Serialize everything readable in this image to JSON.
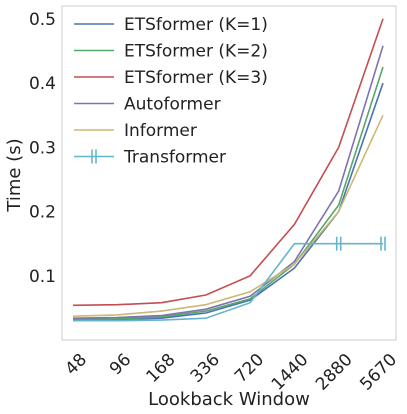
{
  "chart_data": {
    "type": "line",
    "title": "",
    "xlabel": "Lookback Window",
    "ylabel": "Time (s)",
    "categories": [
      "48",
      "96",
      "168",
      "336",
      "720",
      "1440",
      "2880",
      "5670"
    ],
    "ylim": [
      0.0,
      0.52
    ],
    "yticks": [
      "0.1",
      "0.2",
      "0.3",
      "0.4",
      "0.5"
    ],
    "ytick_values": [
      0.1,
      0.2,
      0.3,
      0.4,
      0.5
    ],
    "grid": false,
    "legend_position": "top-left",
    "series": [
      {
        "name": "ETSformer (K=1)",
        "color": "#4c72b0",
        "marker": "none",
        "values": [
          0.031,
          0.032,
          0.034,
          0.042,
          0.062,
          0.112,
          0.2,
          0.4
        ]
      },
      {
        "name": "ETSformer (K=2)",
        "color": "#55a868",
        "marker": "none",
        "values": [
          0.032,
          0.033,
          0.036,
          0.045,
          0.064,
          0.118,
          0.21,
          0.425
        ]
      },
      {
        "name": "ETSformer (K=3)",
        "color": "#c44e52",
        "marker": "none",
        "values": [
          0.054,
          0.055,
          0.058,
          0.07,
          0.1,
          0.18,
          0.3,
          0.5
        ]
      },
      {
        "name": "Autoformer",
        "color": "#8172b2",
        "marker": "none",
        "values": [
          0.034,
          0.035,
          0.038,
          0.048,
          0.068,
          0.122,
          0.232,
          0.458
        ]
      },
      {
        "name": "Informer",
        "color": "#ccb974",
        "marker": "none",
        "values": [
          0.037,
          0.039,
          0.045,
          0.055,
          0.075,
          0.118,
          0.2,
          0.35
        ]
      },
      {
        "name": "Transformer",
        "color": "#64b5cd",
        "marker": "vline",
        "values": [
          0.03,
          0.03,
          0.031,
          0.034,
          0.058,
          0.15,
          0.15,
          0.15
        ],
        "marked_points": [
          6,
          7
        ]
      }
    ]
  }
}
